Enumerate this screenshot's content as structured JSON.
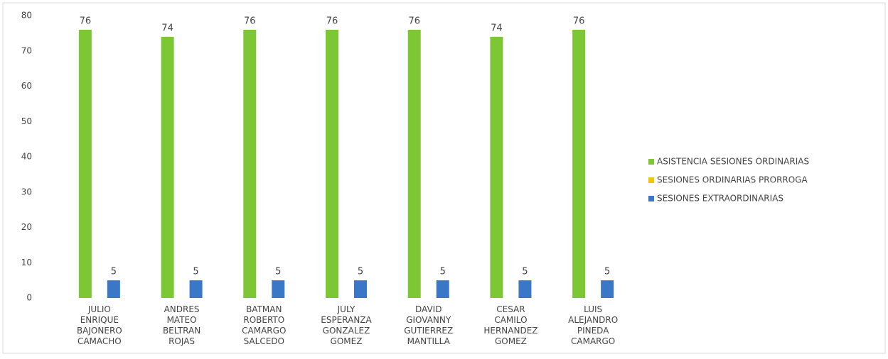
{
  "chart_data": {
    "type": "bar",
    "categories": [
      "JULIO ENRIQUE BAJONERO CAMACHO",
      "ANDRES MATEO BELTRAN ROJAS",
      "BATMAN ROBERTO CAMARGO SALCEDO",
      "JULY ESPERANZA GONZALEZ GOMEZ",
      "DAVID GIOVANNY GUTIERREZ MANTILLA",
      "CESAR CAMILO HERNANDEZ GOMEZ",
      "LUIS ALEJANDRO PINEDA CAMARGO"
    ],
    "series": [
      {
        "name": "ASISTENCIA SESIONES ORDINARIAS",
        "color": "#7cc733",
        "values": [
          76,
          74,
          76,
          76,
          76,
          74,
          76
        ]
      },
      {
        "name": "SESIONES ORDINARIAS PRORROGA",
        "color": "#f2c40c",
        "values": [
          null,
          null,
          null,
          null,
          null,
          null,
          null
        ]
      },
      {
        "name": "SESIONES EXTRAORDINARIAS",
        "color": "#3a77c6",
        "values": [
          5,
          5,
          5,
          5,
          5,
          5,
          5
        ]
      }
    ],
    "ylim": [
      0,
      80
    ],
    "yticks": [
      0,
      10,
      20,
      30,
      40,
      50,
      60,
      70,
      80
    ],
    "grid": false,
    "legend": "right"
  }
}
